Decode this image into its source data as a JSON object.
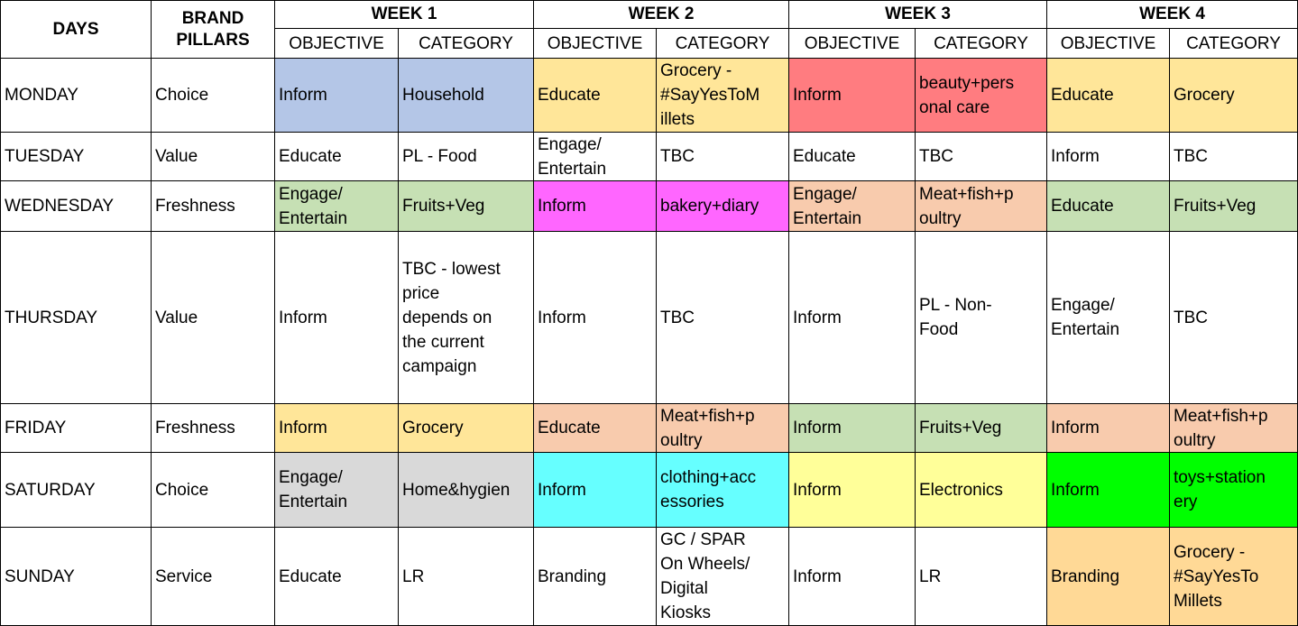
{
  "header": {
    "days": "DAYS",
    "brand_pillars": "BRAND\nPILLARS",
    "weeks": [
      "WEEK 1",
      "WEEK 2",
      "WEEK 3",
      "WEEK 4"
    ],
    "objective": "OBJECTIVE",
    "category": "CATEGORY"
  },
  "colors": {
    "blue": "#b4c6e7",
    "orange_light": "#ffe699",
    "red": "#ff7c80",
    "green_light": "#c6e0b4",
    "magenta": "#ff66ff",
    "peach": "#f8cbad",
    "gray": "#d9d9d9",
    "cyan": "#66ffff",
    "yellow": "#ffff99",
    "green": "#00ff00",
    "tan": "#ffd996"
  },
  "rows": [
    {
      "day": "MONDAY",
      "pillar": "Choice",
      "cells": [
        {
          "text": "Inform",
          "color": "#b4c6e7"
        },
        {
          "text": "Household",
          "color": "#b4c6e7"
        },
        {
          "text": "Educate",
          "color": "#ffe699"
        },
        {
          "text": "Grocery -\n#SayYesToM\nillets",
          "color": "#ffe699"
        },
        {
          "text": "Inform",
          "color": "#ff7c80"
        },
        {
          "text": "beauty+pers\nonal care",
          "color": "#ff7c80"
        },
        {
          "text": "Educate",
          "color": "#ffe699"
        },
        {
          "text": "Grocery",
          "color": "#ffe699"
        }
      ]
    },
    {
      "day": "TUESDAY",
      "pillar": "Value",
      "cells": [
        {
          "text": "Educate",
          "color": "#ffffff"
        },
        {
          "text": "PL - Food",
          "color": "#ffffff"
        },
        {
          "text": "Engage/\nEntertain",
          "color": "#ffffff"
        },
        {
          "text": "TBC",
          "color": "#ffffff"
        },
        {
          "text": "Educate",
          "color": "#ffffff"
        },
        {
          "text": "TBC",
          "color": "#ffffff"
        },
        {
          "text": "Inform",
          "color": "#ffffff"
        },
        {
          "text": "TBC",
          "color": "#ffffff"
        }
      ]
    },
    {
      "day": "WEDNESDAY",
      "pillar": "Freshness",
      "cells": [
        {
          "text": "Engage/\nEntertain",
          "color": "#c6e0b4"
        },
        {
          "text": "Fruits+Veg",
          "color": "#c6e0b4"
        },
        {
          "text": "Inform",
          "color": "#ff66ff"
        },
        {
          "text": "bakery+diary",
          "color": "#ff66ff"
        },
        {
          "text": "Engage/\nEntertain",
          "color": "#f8cbad"
        },
        {
          "text": "Meat+fish+p\noultry",
          "color": "#f8cbad"
        },
        {
          "text": "Educate",
          "color": "#c6e0b4"
        },
        {
          "text": "Fruits+Veg",
          "color": "#c6e0b4"
        }
      ]
    },
    {
      "day": "THURSDAY",
      "pillar": "Value",
      "cells": [
        {
          "text": "Inform",
          "color": "#ffffff"
        },
        {
          "text": "TBC - lowest\nprice\ndepends on\nthe current\ncampaign",
          "color": "#ffffff"
        },
        {
          "text": "Inform",
          "color": "#ffffff"
        },
        {
          "text": "TBC",
          "color": "#ffffff"
        },
        {
          "text": "Inform",
          "color": "#ffffff"
        },
        {
          "text": "PL - Non-\nFood",
          "color": "#ffffff"
        },
        {
          "text": "Engage/\nEntertain",
          "color": "#ffffff"
        },
        {
          "text": "TBC",
          "color": "#ffffff"
        }
      ]
    },
    {
      "day": "FRIDAY",
      "pillar": "Freshness",
      "cells": [
        {
          "text": "Inform",
          "color": "#ffe699"
        },
        {
          "text": "Grocery",
          "color": "#ffe699"
        },
        {
          "text": "Educate",
          "color": "#f8cbad"
        },
        {
          "text": "Meat+fish+p\noultry",
          "color": "#f8cbad"
        },
        {
          "text": "Inform",
          "color": "#c6e0b4"
        },
        {
          "text": "Fruits+Veg",
          "color": "#c6e0b4"
        },
        {
          "text": "Inform",
          "color": "#f8cbad"
        },
        {
          "text": "Meat+fish+p\noultry",
          "color": "#f8cbad"
        }
      ]
    },
    {
      "day": "SATURDAY",
      "pillar": "Choice",
      "cells": [
        {
          "text": "Engage/\nEntertain",
          "color": "#d9d9d9"
        },
        {
          "text": "Home&hygien",
          "color": "#d9d9d9"
        },
        {
          "text": "Inform",
          "color": "#66ffff"
        },
        {
          "text": "clothing+acc\nessories\n",
          "color": "#66ffff"
        },
        {
          "text": "Inform",
          "color": "#ffff99"
        },
        {
          "text": "Electronics",
          "color": "#ffff99"
        },
        {
          "text": "Inform",
          "color": "#00ff00"
        },
        {
          "text": "toys+station\nery",
          "color": "#00ff00"
        }
      ]
    },
    {
      "day": "SUNDAY",
      "pillar": "Service",
      "cells": [
        {
          "text": "Educate",
          "color": "#ffffff"
        },
        {
          "text": "LR",
          "color": "#ffffff"
        },
        {
          "text": "Branding",
          "color": "#ffffff"
        },
        {
          "text": "GC / SPAR\nOn Wheels/\nDigital\nKiosks",
          "color": "#ffffff"
        },
        {
          "text": "Inform",
          "color": "#ffffff"
        },
        {
          "text": "LR",
          "color": "#ffffff"
        },
        {
          "text": "Branding",
          "color": "#ffd996"
        },
        {
          "text": "Grocery -\n#SayYesTo\nMillets",
          "color": "#ffd996"
        }
      ]
    }
  ]
}
